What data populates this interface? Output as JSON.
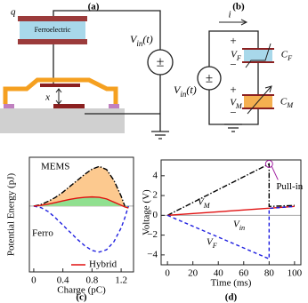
{
  "panels": {
    "a": {
      "label": "(a)",
      "charge": "q",
      "material": "Ferroelectric",
      "source": "V_{in}(t)",
      "source_symbol": "±",
      "gap": "x"
    },
    "b": {
      "label": "(b)",
      "current": "i",
      "source": "V_{in}(t)",
      "source_symbol": "±",
      "ferro": {
        "plus": "+",
        "voltage": "V_F",
        "minus": "−",
        "capacitor": "C_F"
      },
      "mems": {
        "plus": "+",
        "voltage": "V_M",
        "minus": "−",
        "capacitor": "C_M"
      }
    }
  },
  "chart_data": [
    {
      "type": "line",
      "label": "(c)",
      "xlabel": "Charge (pC)",
      "ylabel": "Potential Energy (pJ)",
      "x": [
        0,
        0.1,
        0.2,
        0.3,
        0.4,
        0.5,
        0.6,
        0.7,
        0.8,
        0.9,
        1.0,
        1.1,
        1.2,
        1.25,
        1.3
      ],
      "xlim": [
        -0.06,
        1.37
      ],
      "xticks": [
        0,
        0.4,
        0.8,
        1.2
      ],
      "ylim": [
        -1.66,
        1.23
      ],
      "zero_line": true,
      "series": [
        {
          "name": "MEMS",
          "color": "#000000",
          "dash": "dashdot",
          "fill": "#fcc98f",
          "values": [
            0,
            0.04,
            0.12,
            0.22,
            0.35,
            0.5,
            0.65,
            0.8,
            0.93,
            1.0,
            0.92,
            0.65,
            0.25,
            0,
            null
          ]
        },
        {
          "name": "Ferro",
          "color": "#1f1fe0",
          "dash": "dashed",
          "values": [
            0,
            -0.04,
            -0.14,
            -0.3,
            -0.48,
            -0.66,
            -0.84,
            -1.0,
            -1.12,
            -1.16,
            -1.1,
            -0.9,
            -0.55,
            -0.3,
            0
          ]
        },
        {
          "name": "Hybrid",
          "color": "#e01010",
          "dash": "solid",
          "fill": "#90e090",
          "values": [
            0,
            0.02,
            0.05,
            0.09,
            0.13,
            0.17,
            0.2,
            0.22,
            0.23,
            0.22,
            0.18,
            0.1,
            0.02,
            -0.02,
            -0.05
          ]
        }
      ]
    },
    {
      "type": "line",
      "label": "(d)",
      "xlabel": "Time (ms)",
      "ylabel": "Voltage (V)",
      "xlim": [
        -5,
        105
      ],
      "xticks": [
        0,
        20,
        40,
        60,
        80,
        100
      ],
      "ylim": [
        -5,
        5.6
      ],
      "yticks": [
        {
          "value": -4,
          "label": "−4"
        },
        {
          "value": -2,
          "label": "−2"
        },
        0,
        2,
        4
      ],
      "zero_line": true,
      "series": [
        {
          "name": "V_M",
          "color": "#000000",
          "dash": "dashdot",
          "x": [
            0,
            80,
            80,
            100
          ],
          "values": [
            0,
            5.2,
            0.9,
            1.0
          ]
        },
        {
          "name": "V_{in}",
          "color": "#e01010",
          "dash": "solid",
          "x": [
            0,
            100
          ],
          "values": [
            0,
            0.9
          ]
        },
        {
          "name": "V_F",
          "color": "#1f1fe0",
          "dash": "dashed",
          "x": [
            0,
            80,
            80,
            100
          ],
          "values": [
            0,
            -4.4,
            0.7,
            0.9
          ]
        }
      ],
      "annotations": [
        {
          "text": "Pull-in",
          "x": 80,
          "y": 5.2,
          "color": "#a020a0"
        }
      ]
    }
  ]
}
